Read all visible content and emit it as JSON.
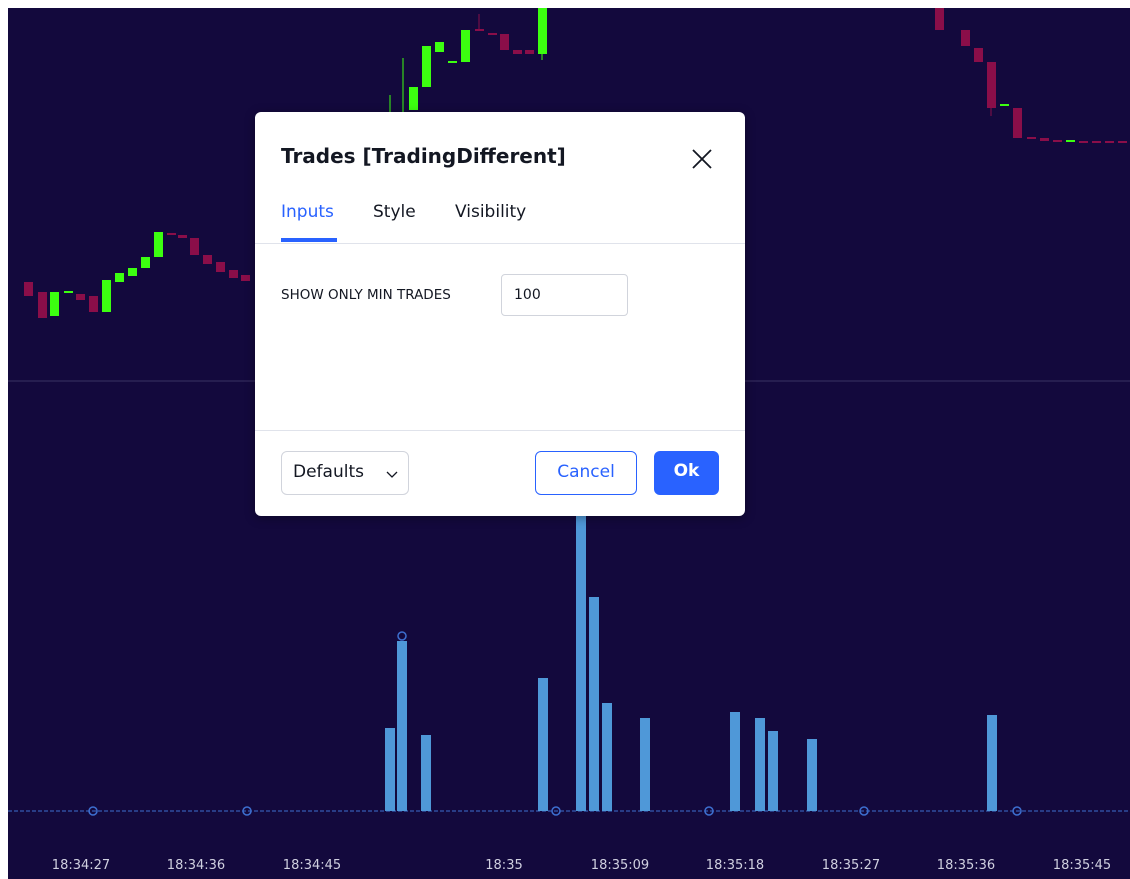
{
  "dialog": {
    "title": "Trades [TradingDifferent]",
    "tabs": [
      "Inputs",
      "Style",
      "Visibility"
    ],
    "inputs": [
      {
        "label": "SHOW ONLY MIN TRADES",
        "value": "100"
      }
    ],
    "footer": {
      "defaults": "Defaults",
      "cancel": "Cancel",
      "ok": "Ok"
    }
  },
  "time_axis": [
    "18:34:27",
    "18:34:36",
    "18:34:45",
    "18:35",
    "18:35:09",
    "18:35:18",
    "18:35:27",
    "18:35:36",
    "18:35:45"
  ]
}
